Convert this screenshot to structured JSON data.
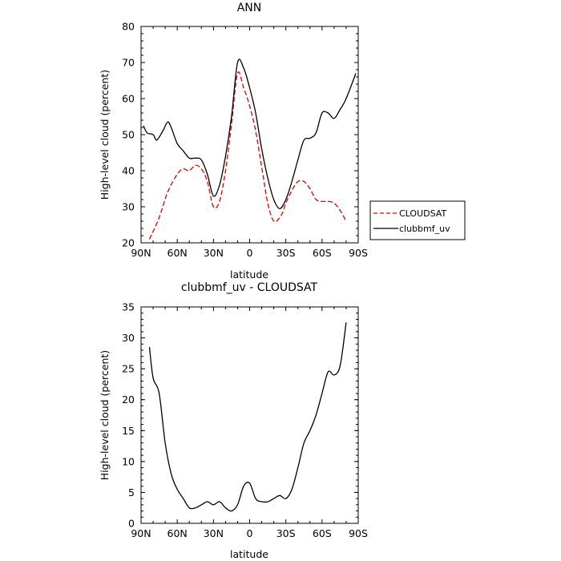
{
  "chart_data": [
    {
      "type": "line",
      "title": "ANN",
      "xlabel": "latitude",
      "ylabel": "High-level cloud (percent)",
      "xlim": [
        90,
        -90
      ],
      "ylim": [
        20,
        80
      ],
      "x_ticks": [
        90,
        60,
        30,
        0,
        -30,
        -60,
        -90
      ],
      "x_tick_labels": [
        "90N",
        "60N",
        "30N",
        "0",
        "30S",
        "60S",
        "90S"
      ],
      "y_ticks": [
        20,
        30,
        40,
        50,
        60,
        70,
        80
      ],
      "y_tick_labels": [
        "20",
        "30",
        "40",
        "50",
        "60",
        "70",
        "80"
      ],
      "legend": {
        "placement": "right-outside"
      },
      "series": [
        {
          "name": "CLOUDSAT",
          "style": "dashed",
          "color": "#dd0000",
          "x": [
            83,
            75,
            68,
            60,
            55,
            50,
            45,
            40,
            35,
            30,
            25,
            20,
            15,
            10,
            5,
            0,
            -5,
            -10,
            -15,
            -20,
            -25,
            -28,
            -30,
            -35,
            -40,
            -45,
            -50,
            -55,
            -60,
            -65,
            -70,
            -75,
            -80
          ],
          "y": [
            21,
            27,
            34,
            39,
            40.5,
            40,
            41.5,
            40.5,
            37,
            30,
            31.5,
            40,
            53,
            67,
            63,
            58,
            51,
            41,
            31,
            26,
            27,
            29,
            31,
            34.5,
            37,
            37,
            35,
            32,
            31.5,
            31.5,
            31,
            29,
            26
          ]
        },
        {
          "name": "clubbmf_uv",
          "style": "solid",
          "color": "#000000",
          "x": [
            88,
            85,
            80,
            77,
            72,
            68,
            65,
            60,
            55,
            50,
            45,
            40,
            35,
            30,
            25,
            20,
            15,
            10,
            5,
            0,
            -5,
            -10,
            -15,
            -20,
            -25,
            -30,
            -35,
            -40,
            -45,
            -50,
            -55,
            -60,
            -65,
            -70,
            -75,
            -80,
            -88
          ],
          "y": [
            52.5,
            50.5,
            50,
            48.5,
            51,
            53.5,
            52,
            47.5,
            45.5,
            43.5,
            43.5,
            43,
            39,
            33,
            36,
            44,
            55,
            70,
            68.5,
            63,
            56,
            46,
            38,
            32,
            29.5,
            32,
            37,
            43,
            48.5,
            49,
            50.5,
            56,
            56,
            54.5,
            57,
            60,
            67
          ]
        }
      ]
    },
    {
      "type": "line",
      "title": "clubbmf_uv - CLOUDSAT",
      "xlabel": "latitude",
      "ylabel": "High-level cloud (percent)",
      "xlim": [
        90,
        -90
      ],
      "ylim": [
        0,
        35
      ],
      "x_ticks": [
        90,
        60,
        30,
        0,
        -30,
        -60,
        -90
      ],
      "x_tick_labels": [
        "90N",
        "60N",
        "30N",
        "0",
        "30S",
        "60S",
        "90S"
      ],
      "y_ticks": [
        0,
        5,
        10,
        15,
        20,
        25,
        30,
        35
      ],
      "y_tick_labels": [
        "0",
        "5",
        "10",
        "15",
        "20",
        "25",
        "30",
        "35"
      ],
      "series": [
        {
          "style": "solid",
          "color": "#000000",
          "x": [
            83,
            80,
            75,
            70,
            65,
            60,
            55,
            50,
            45,
            40,
            35,
            30,
            25,
            20,
            15,
            10,
            5,
            0,
            -5,
            -10,
            -15,
            -20,
            -25,
            -30,
            -35,
            -40,
            -45,
            -50,
            -55,
            -60,
            -65,
            -70,
            -75,
            -80
          ],
          "y": [
            28.5,
            23.5,
            21,
            13,
            8,
            5.5,
            4,
            2.5,
            2.5,
            3,
            3.5,
            3,
            3.5,
            2.5,
            2,
            3,
            6,
            6.5,
            4,
            3.5,
            3.5,
            4,
            4.5,
            4,
            5.5,
            9,
            13,
            15,
            17.5,
            21,
            24.5,
            24,
            25.5,
            32.5
          ]
        }
      ]
    }
  ]
}
